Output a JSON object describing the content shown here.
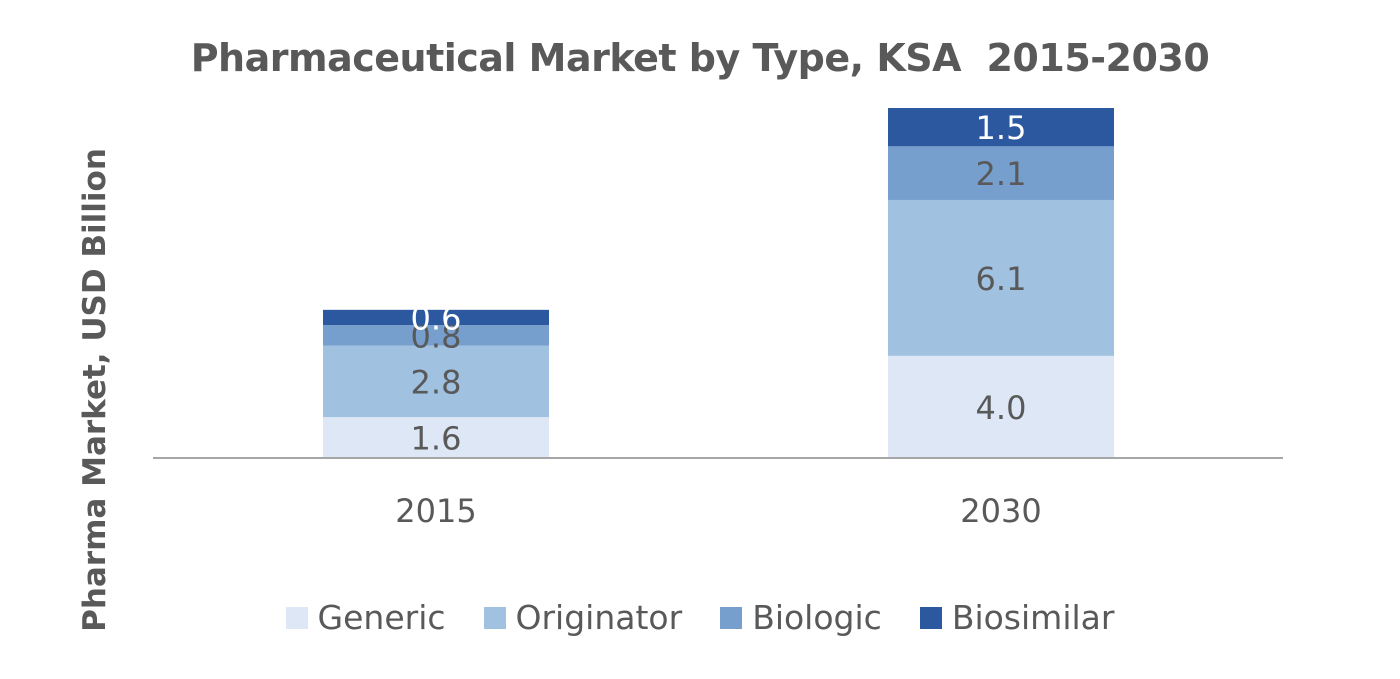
{
  "chart_data": {
    "type": "bar",
    "stacked": true,
    "title": "Pharmaceutical Market by Type, KSA  2015-2030",
    "ylabel": "Pharma Market, USD Billion",
    "xlabel": "",
    "categories": [
      "2015",
      "2030"
    ],
    "series": [
      {
        "name": "Generic",
        "values": [
          1.6,
          4.0
        ],
        "color": "#dde7f5",
        "label_color": "#595959"
      },
      {
        "name": "Originator",
        "values": [
          2.8,
          6.1
        ],
        "color": "#a0c1e0",
        "label_color": "#595959"
      },
      {
        "name": "Biologic",
        "values": [
          0.8,
          2.1
        ],
        "color": "#769fcd",
        "label_color": "#595959"
      },
      {
        "name": "Biosimilar",
        "values": [
          0.6,
          1.5
        ],
        "color": "#2c58a0",
        "label_color": "#ffffff"
      }
    ],
    "ylim": [
      0,
      13.7
    ],
    "grid": false,
    "legend_position": "bottom",
    "data_labels": true,
    "y_axis_visible": false
  }
}
